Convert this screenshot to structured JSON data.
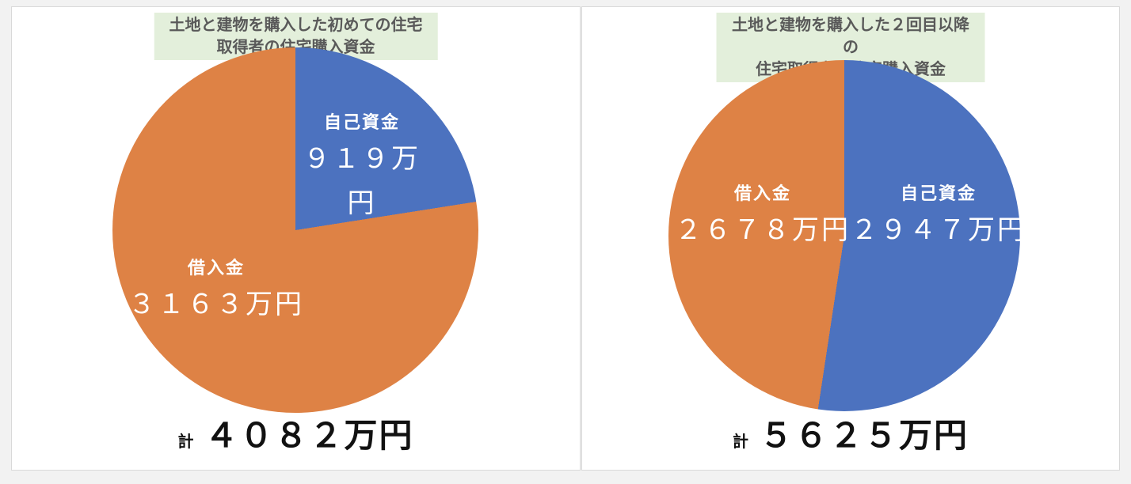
{
  "colors": {
    "blue": "#4C72BF",
    "orange": "#DE8245",
    "title_bg": "#E3EFDB",
    "title_text": "#595959",
    "total_text": "#111111",
    "slice_label_text": "#FFFFFF"
  },
  "chart_data": [
    {
      "type": "pie",
      "title": "土地と建物を購入した初めての住宅取得者の住宅購入資金",
      "unit": "万円",
      "start_angle_deg": 0,
      "direction": "clockwise",
      "slices": [
        {
          "label": "自己資金",
          "value": 919,
          "display": "９１９万\n円",
          "color_key": "blue"
        },
        {
          "label": "借入金",
          "value": 3163,
          "display": "３１６３万円",
          "color_key": "orange"
        }
      ],
      "total_prefix": "計",
      "total_value": 4082,
      "total_display": "４０８２万円"
    },
    {
      "type": "pie",
      "title": "土地と建物を購入した２回目以降の\n住宅取得者の住宅購入資金",
      "unit": "万円",
      "start_angle_deg": 0,
      "direction": "clockwise",
      "slices": [
        {
          "label": "自己資金",
          "value": 2947,
          "display": "２９４７万円",
          "color_key": "blue"
        },
        {
          "label": "借入金",
          "value": 2678,
          "display": "２６７８万円",
          "color_key": "orange"
        }
      ],
      "total_prefix": "計",
      "total_value": 5625,
      "total_display": "５６２５万円"
    }
  ]
}
